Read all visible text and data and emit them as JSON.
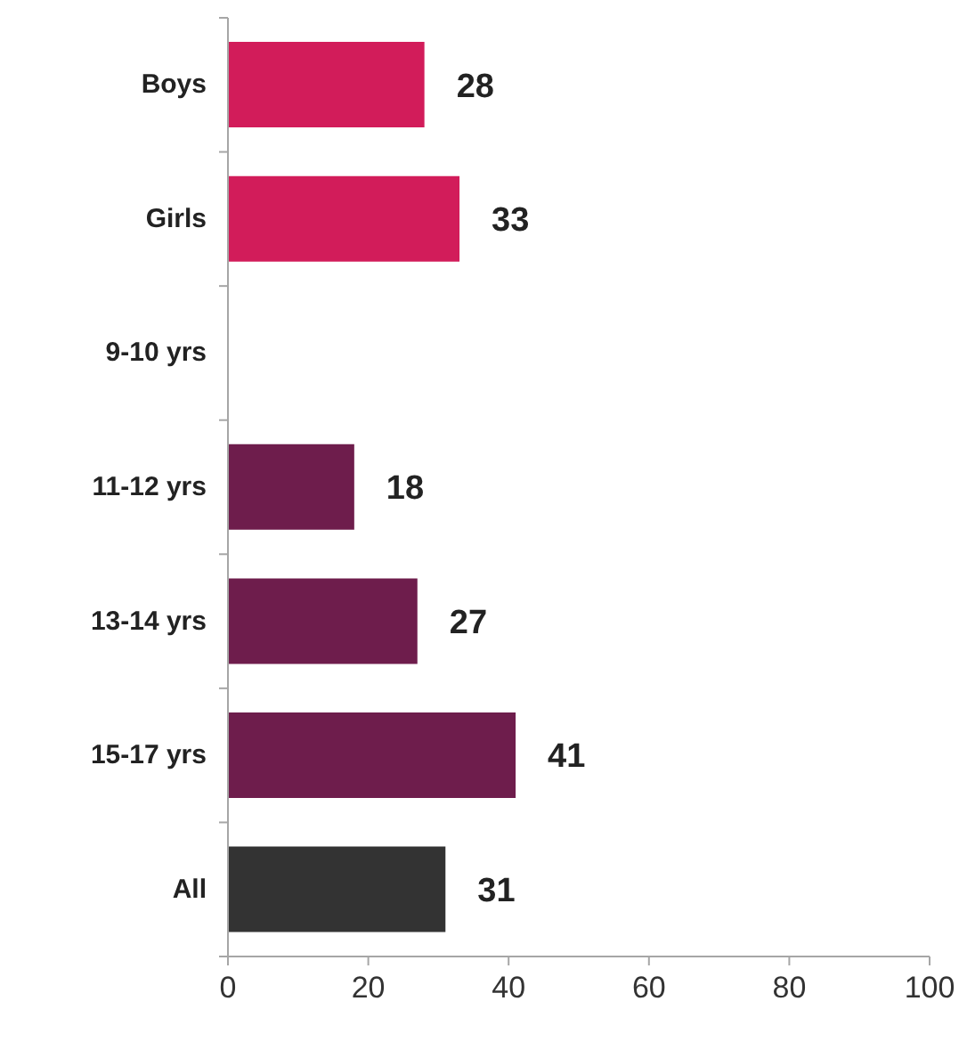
{
  "chart_data": {
    "type": "bar",
    "orientation": "horizontal",
    "categories": [
      "Boys",
      "Girls",
      "9-10 yrs",
      "11-12 yrs",
      "13-14 yrs",
      "15-17 yrs",
      "All"
    ],
    "values": [
      28,
      33,
      null,
      18,
      27,
      41,
      31
    ],
    "colors": [
      "#d21c5a",
      "#d21c5a",
      "#6e1d4c",
      "#6e1d4c",
      "#6e1d4c",
      "#6e1d4c",
      "#333333"
    ],
    "xlim": [
      0,
      100
    ],
    "xticks": [
      0,
      20,
      40,
      60,
      80,
      100
    ],
    "data_labels": true
  }
}
